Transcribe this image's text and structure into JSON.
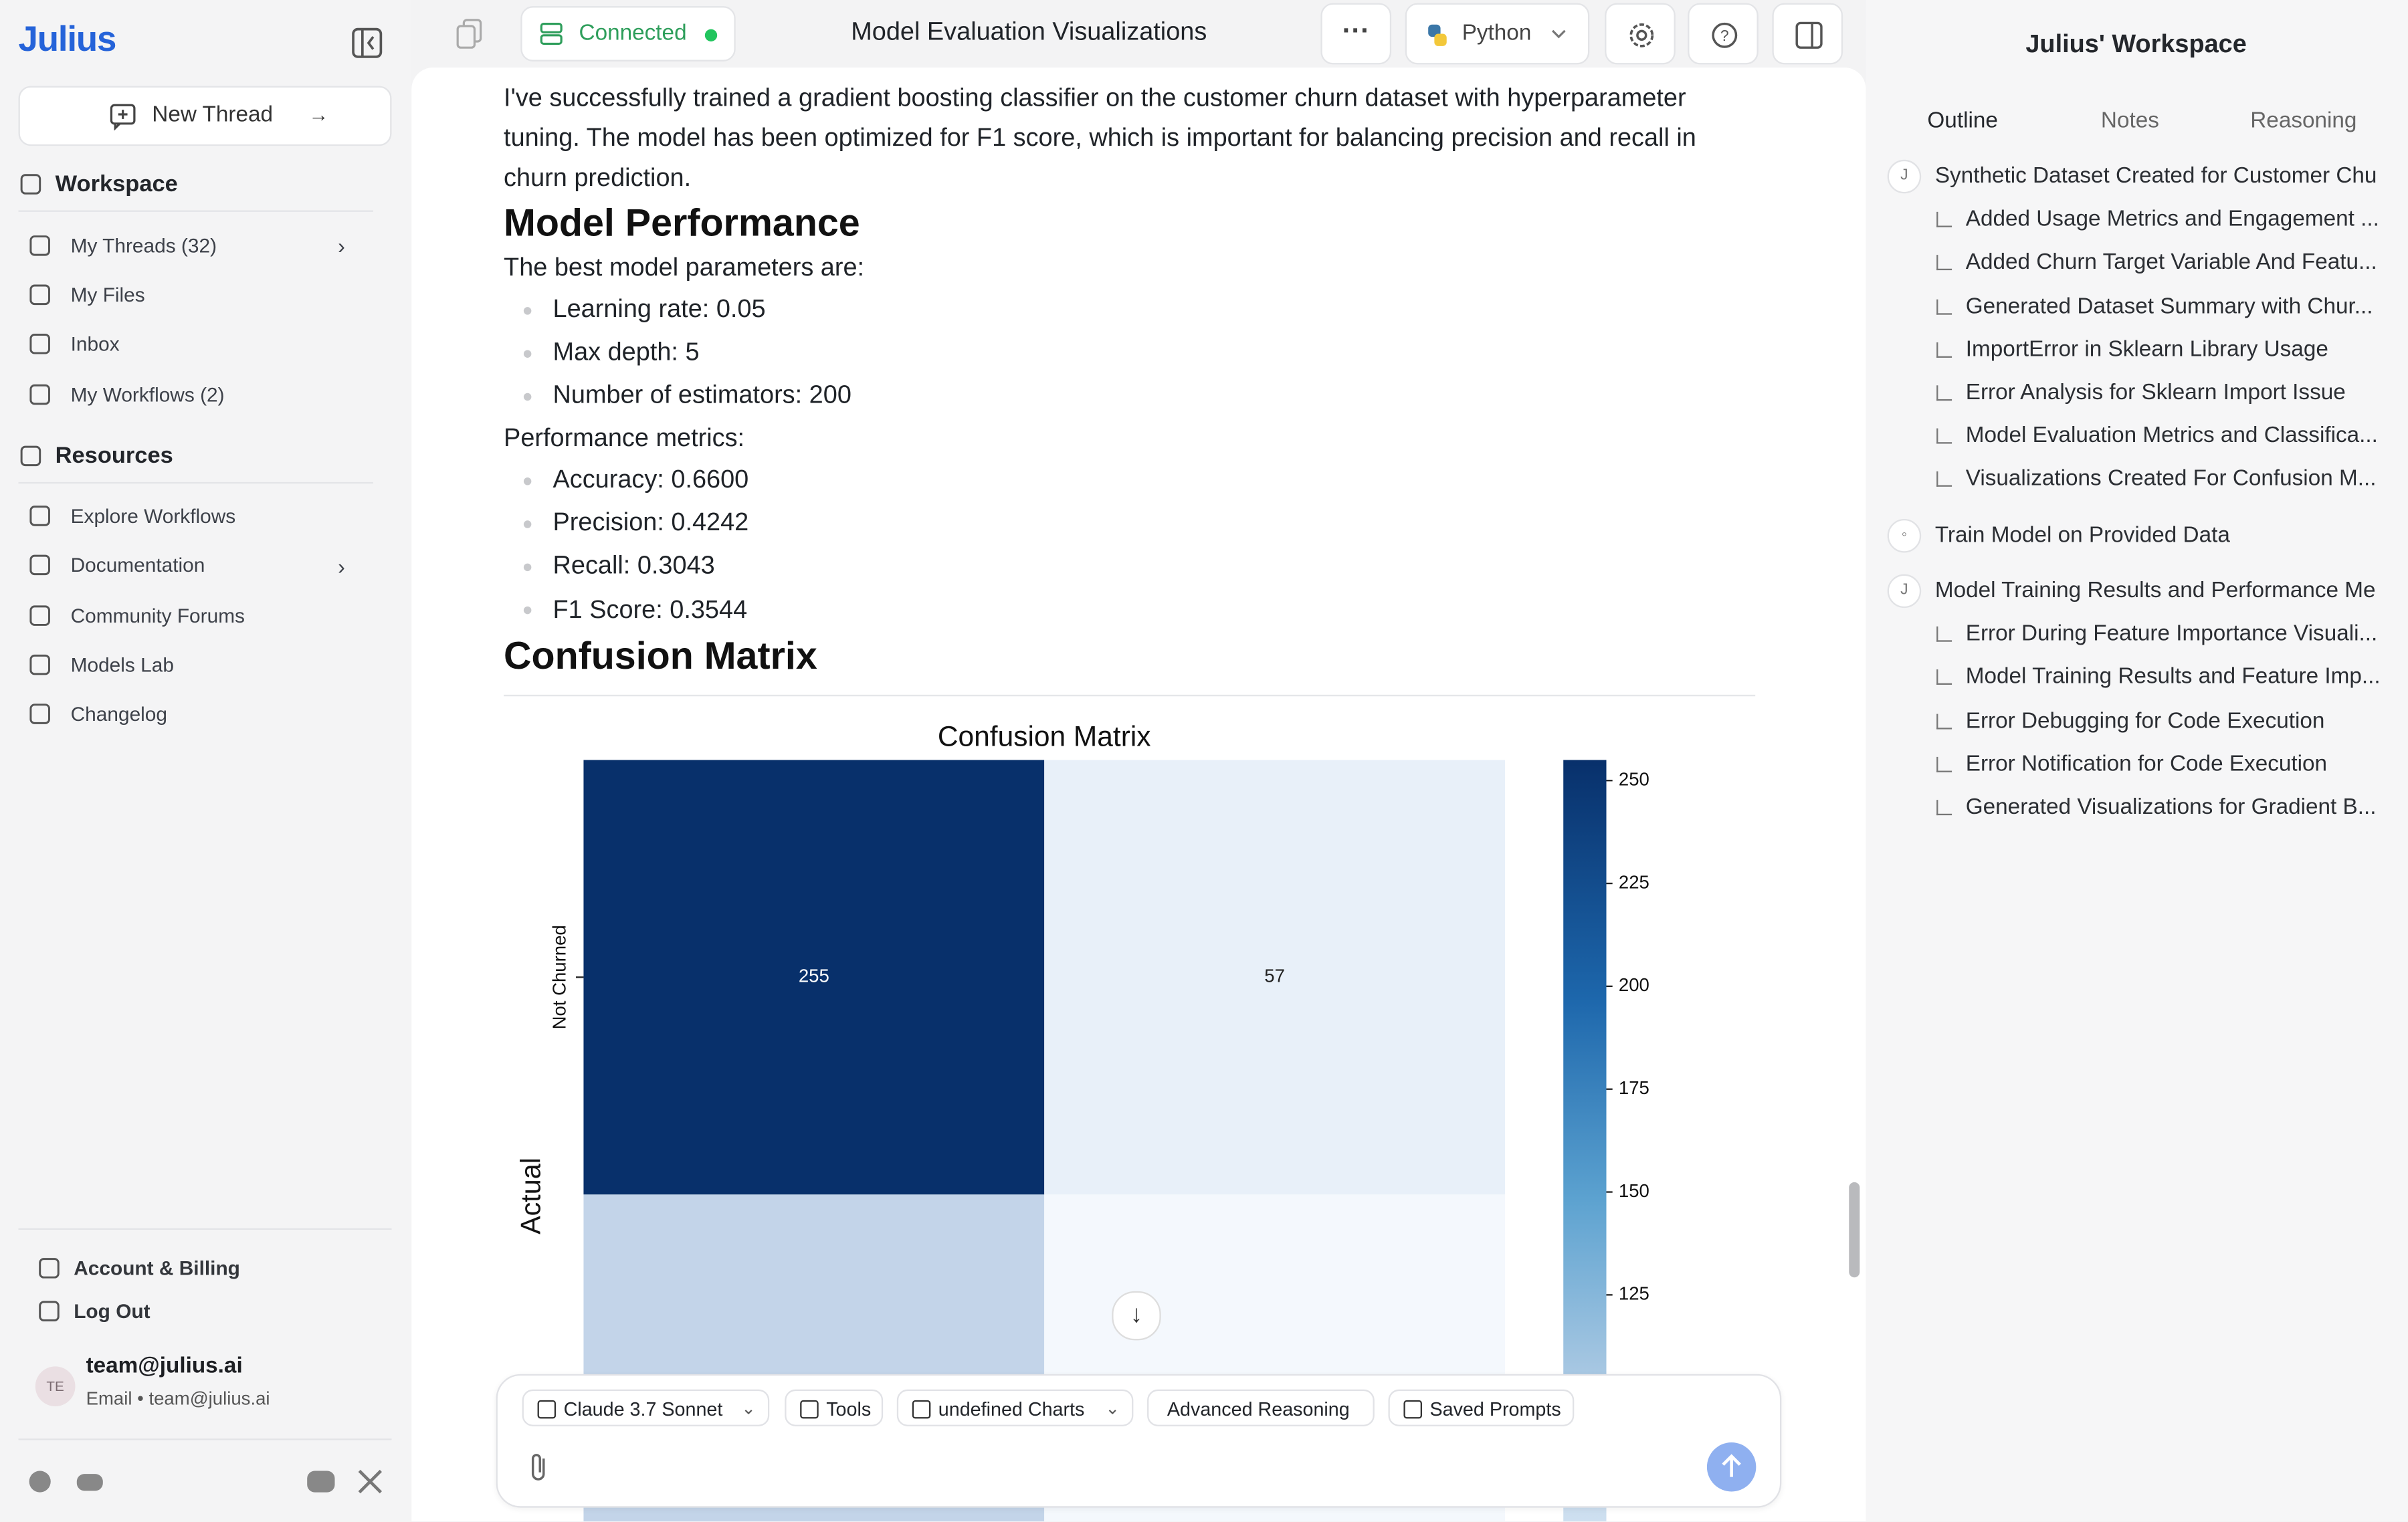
{
  "sidebar": {
    "brand": "Julius",
    "new_thread": "New Thread",
    "workspace": {
      "title": "Workspace",
      "items": [
        "My Threads (32)",
        "My Files",
        "Inbox",
        "My Workflows (2)"
      ]
    },
    "resources": {
      "title": "Resources",
      "items": [
        "Explore Workflows",
        "Documentation",
        "Community Forums",
        "Models Lab",
        "Changelog"
      ]
    },
    "account": [
      "Account & Billing",
      "Log Out"
    ],
    "user": {
      "avatar": "TE",
      "email": "team@julius.ai",
      "subtitle_label": "Email",
      "subtitle_email": "team@julius.ai"
    }
  },
  "header": {
    "status": "Connected",
    "title": "Model Evaluation Visualizations",
    "language": "Python"
  },
  "message": {
    "intro": "I've successfully trained a gradient boosting classifier on the customer churn dataset with hyperparameter tuning. The model has been optimized for F1 score, which is important for balancing precision and recall in churn prediction.",
    "heading1": "Model Performance",
    "params_label": "The best model parameters are:",
    "params": [
      "Learning rate: 0.05",
      "Max depth: 5",
      "Number of estimators: 200"
    ],
    "metrics_label": "Performance metrics:",
    "metrics": [
      "Accuracy: 0.6600",
      "Precision: 0.4242",
      "Recall: 0.3043",
      "F1 Score: 0.3544"
    ],
    "heading2": "Confusion Matrix"
  },
  "confusion_matrix": {
    "title": "Confusion Matrix",
    "y_label": "Actual",
    "row_labels": [
      "Not Churned"
    ],
    "values": [
      [
        255,
        57
      ]
    ],
    "colorbar_ticks": [
      250,
      225,
      200,
      175,
      150,
      125
    ],
    "colorbar_max": 255
  },
  "composer": {
    "chips": [
      "Claude 3.7 Sonnet",
      "Tools",
      "undefined Charts",
      "Advanced Reasoning",
      "Saved Prompts"
    ]
  },
  "workspace_panel": {
    "title": "Julius' Workspace",
    "tabs": [
      "Outline",
      "Notes",
      "Reasoning"
    ],
    "outline": [
      {
        "title": "Synthetic Dataset Created for Customer Chu",
        "children": [
          "Added Usage Metrics and Engagement ...",
          "Added Churn Target Variable And Featu...",
          "Generated Dataset Summary with Chur...",
          "ImportError in Sklearn Library Usage",
          "Error Analysis for Sklearn Import Issue",
          "Model Evaluation Metrics and Classifica...",
          "Visualizations Created For Confusion M..."
        ]
      },
      {
        "title": "Train Model on Provided Data",
        "children": []
      },
      {
        "title": "Model Training Results and Performance Me",
        "children": [
          "Error During Feature Importance Visuali...",
          "Model Training Results and Feature Imp...",
          "Error Debugging for Code Execution",
          "Error Notification for Code Execution",
          "Generated Visualizations for Gradient B..."
        ]
      }
    ]
  }
}
